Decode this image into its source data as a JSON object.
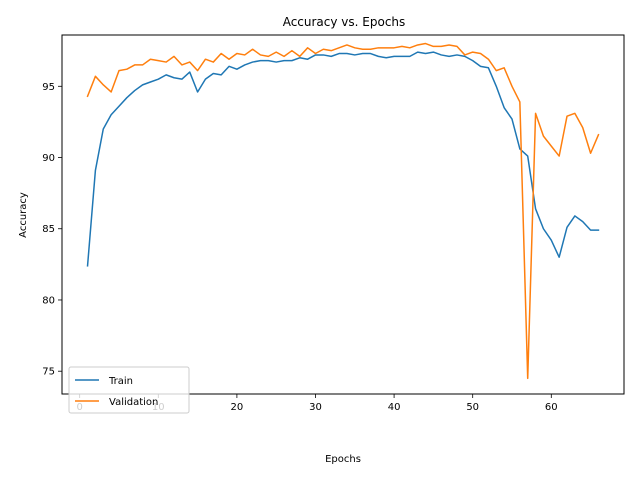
{
  "chart_data": {
    "type": "line",
    "title": "Accuracy vs. Epochs",
    "xlabel": "Epochs",
    "ylabel": "Accuracy",
    "xlim": [
      -2.25,
      69.25
    ],
    "ylim": [
      73.4,
      98.6
    ],
    "xticks": [
      0,
      10,
      20,
      30,
      40,
      50,
      60
    ],
    "yticks": [
      75,
      80,
      85,
      90,
      95
    ],
    "grid": false,
    "legend_position": "lower-left",
    "x": [
      1,
      2,
      3,
      4,
      5,
      6,
      7,
      8,
      9,
      10,
      11,
      12,
      13,
      14,
      15,
      16,
      17,
      18,
      19,
      20,
      21,
      22,
      23,
      24,
      25,
      26,
      27,
      28,
      29,
      30,
      31,
      32,
      33,
      34,
      35,
      36,
      37,
      38,
      39,
      40,
      41,
      42,
      43,
      44,
      45,
      46,
      47,
      48,
      49,
      50,
      51,
      52,
      53,
      54,
      55,
      56,
      57,
      58,
      59,
      60,
      61,
      62,
      63,
      64,
      65,
      66
    ],
    "series": [
      {
        "name": "Train",
        "color": "#1f77b4",
        "values": [
          82.4,
          89.1,
          92.0,
          93.0,
          93.6,
          94.2,
          94.7,
          95.1,
          95.3,
          95.5,
          95.8,
          95.6,
          95.5,
          96.0,
          94.6,
          95.5,
          95.9,
          95.8,
          96.4,
          96.2,
          96.5,
          96.7,
          96.8,
          96.8,
          96.7,
          96.8,
          96.8,
          97.0,
          96.9,
          97.2,
          97.2,
          97.1,
          97.3,
          97.3,
          97.2,
          97.3,
          97.3,
          97.1,
          97.0,
          97.1,
          97.1,
          97.1,
          97.4,
          97.3,
          97.4,
          97.2,
          97.1,
          97.2,
          97.1,
          96.8,
          96.4,
          96.3,
          95.0,
          93.5,
          92.7,
          90.6,
          90.1,
          86.4,
          85.0,
          84.2,
          83.0,
          85.1,
          85.9,
          85.5,
          84.9,
          84.9
        ]
      },
      {
        "name": "Validation",
        "color": "#ff7f0e",
        "values": [
          94.3,
          95.7,
          95.1,
          94.6,
          96.1,
          96.2,
          96.5,
          96.5,
          96.9,
          96.8,
          96.7,
          97.1,
          96.5,
          96.7,
          96.1,
          96.9,
          96.7,
          97.3,
          96.9,
          97.3,
          97.2,
          97.6,
          97.2,
          97.1,
          97.4,
          97.1,
          97.5,
          97.1,
          97.7,
          97.3,
          97.6,
          97.5,
          97.7,
          97.9,
          97.7,
          97.6,
          97.6,
          97.7,
          97.7,
          97.7,
          97.8,
          97.7,
          97.9,
          98.0,
          97.8,
          97.8,
          97.9,
          97.8,
          97.2,
          97.4,
          97.3,
          96.9,
          96.1,
          96.3,
          95.0,
          93.9,
          74.5,
          93.1,
          91.5,
          90.8,
          90.1,
          92.9,
          93.1,
          92.1,
          90.3,
          91.6
        ]
      }
    ]
  }
}
